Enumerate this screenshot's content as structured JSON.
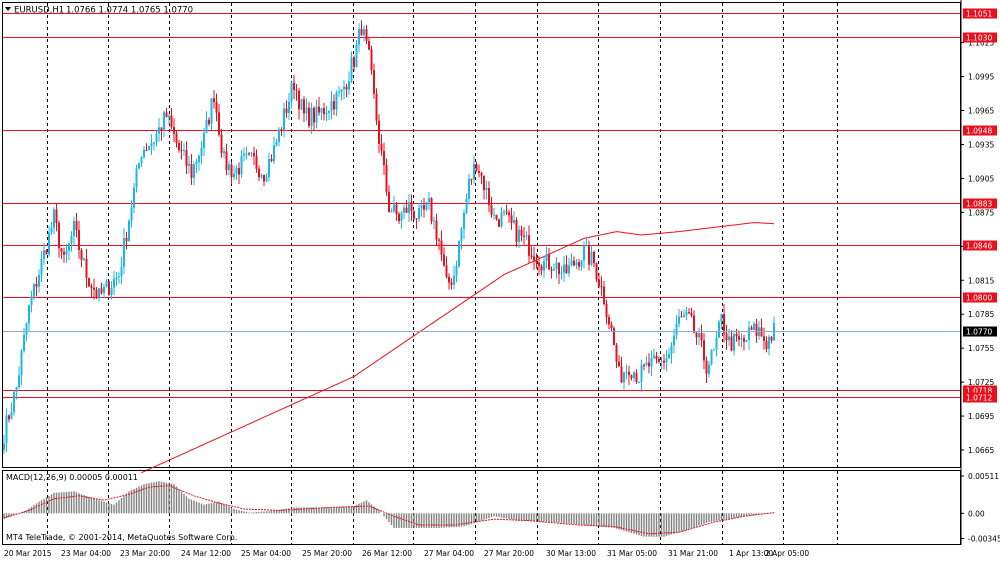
{
  "header": {
    "symbol": "EURUSD,H1",
    "ohlc": "1.0766 1.0774 1.0765 1.0770",
    "dropdown_icon": "triangle-down-icon"
  },
  "colors": {
    "bull": "#1ab8e6",
    "bear": "#e8101d",
    "level": "#e8101d",
    "ma": "#e8101d",
    "grid": "#000000",
    "current_line": "#8fa9c7",
    "histogram": "#808080",
    "signal": "#e8101d"
  },
  "chart_data": [
    {
      "type": "candlestick",
      "title": "EURUSD,H1",
      "ylim": [
        1.065,
        1.106
      ],
      "y_ticks": [
        "1.1025",
        "1.0995",
        "1.0965",
        "1.0935",
        "1.0905",
        "1.0875",
        "1.0845",
        "1.0815",
        "1.0785",
        "1.0755",
        "1.0725",
        "1.0695",
        "1.0665"
      ],
      "x_ticks": [
        "20 Mar 2015",
        "23 Mar 04:00",
        "23 Mar 20:00",
        "24 Mar 12:00",
        "25 Mar 04:00",
        "25 Mar 20:00",
        "26 Mar 12:00",
        "27 Mar 04:00",
        "27 Mar 20:00",
        "30 Mar 13:00",
        "31 Mar 05:00",
        "31 Mar 21:00",
        "1 Apr 13:00",
        "2 Apr 05:00"
      ],
      "levels": [
        {
          "value": 1.1051,
          "label": "1.1051"
        },
        {
          "value": 1.103,
          "label": "1.1030"
        },
        {
          "value": 1.0948,
          "label": "1.0948"
        },
        {
          "value": 1.0883,
          "label": "1.0883"
        },
        {
          "value": 1.0846,
          "label": "1.0846"
        },
        {
          "value": 1.08,
          "label": "1.0800"
        },
        {
          "value": 1.0718,
          "label": "1.0718"
        },
        {
          "value": 1.0712,
          "label": "1.0712"
        }
      ],
      "current_price": {
        "value": 1.077,
        "label": "1.0770"
      },
      "close_path": [
        [
          0,
          1.068
        ],
        [
          5,
          1.072
        ],
        [
          10,
          1.079
        ],
        [
          15,
          1.083
        ],
        [
          20,
          1.087
        ],
        [
          24,
          1.083
        ],
        [
          28,
          1.086
        ],
        [
          33,
          1.082
        ],
        [
          38,
          1.08
        ],
        [
          42,
          1.081
        ],
        [
          46,
          1.082
        ],
        [
          50,
          1.087
        ],
        [
          55,
          1.093
        ],
        [
          60,
          1.094
        ],
        [
          65,
          1.096
        ],
        [
          70,
          1.093
        ],
        [
          75,
          1.091
        ],
        [
          80,
          1.094
        ],
        [
          84,
          1.098
        ],
        [
          88,
          1.092
        ],
        [
          92,
          1.091
        ],
        [
          96,
          1.092
        ],
        [
          100,
          1.092
        ],
        [
          104,
          1.091
        ],
        [
          108,
          1.093
        ],
        [
          112,
          1.096
        ],
        [
          116,
          1.099
        ],
        [
          120,
          1.096
        ],
        [
          125,
          1.096
        ],
        [
          130,
          1.097
        ],
        [
          135,
          1.098
        ],
        [
          140,
          1.101
        ],
        [
          143,
          1.104
        ],
        [
          146,
          1.101
        ],
        [
          150,
          1.094
        ],
        [
          154,
          1.088
        ],
        [
          158,
          1.087
        ],
        [
          162,
          1.088
        ],
        [
          166,
          1.087
        ],
        [
          170,
          1.088
        ],
        [
          174,
          1.085
        ],
        [
          177,
          1.081
        ],
        [
          180,
          1.082
        ],
        [
          183,
          1.086
        ],
        [
          186,
          1.09
        ],
        [
          189,
          1.092
        ],
        [
          192,
          1.09
        ],
        [
          196,
          1.087
        ],
        [
          200,
          1.087
        ],
        [
          204,
          1.086
        ],
        [
          208,
          1.085
        ],
        [
          212,
          1.084
        ],
        [
          216,
          1.083
        ],
        [
          220,
          1.083
        ],
        [
          224,
          1.082
        ],
        [
          228,
          1.083
        ],
        [
          232,
          1.084
        ],
        [
          236,
          1.083
        ],
        [
          240,
          1.08
        ],
        [
          243,
          1.077
        ],
        [
          246,
          1.073
        ],
        [
          250,
          1.074
        ],
        [
          254,
          1.073
        ],
        [
          258,
          1.074
        ],
        [
          262,
          1.074
        ],
        [
          266,
          1.075
        ],
        [
          270,
          1.078
        ],
        [
          274,
          1.078
        ],
        [
          278,
          1.076
        ],
        [
          281,
          1.074
        ],
        [
          284,
          1.075
        ],
        [
          287,
          1.078
        ],
        [
          290,
          1.076
        ],
        [
          293,
          1.076
        ],
        [
          296,
          1.076
        ],
        [
          299,
          1.077
        ],
        [
          302,
          1.077
        ],
        [
          305,
          1.076
        ],
        [
          308,
          1.077
        ]
      ],
      "moving_average": [
        [
          55,
          1.0645
        ],
        [
          80,
          1.067
        ],
        [
          100,
          1.069
        ],
        [
          120,
          1.071
        ],
        [
          140,
          1.073
        ],
        [
          160,
          1.076
        ],
        [
          180,
          1.079
        ],
        [
          200,
          1.082
        ],
        [
          210,
          1.083
        ],
        [
          220,
          1.084
        ],
        [
          232,
          1.0852
        ],
        [
          245,
          1.0858
        ],
        [
          255,
          1.0855
        ],
        [
          270,
          1.0858
        ],
        [
          285,
          1.0862
        ],
        [
          300,
          1.0866
        ],
        [
          308,
          1.0865
        ]
      ]
    },
    {
      "type": "histogram",
      "title": "MACD(12,26,9) 0.00005 0.00011",
      "ylim": [
        -0.0042,
        0.0058
      ],
      "y_ticks": [
        "0.00511",
        "0.00",
        "-0.00345"
      ],
      "histogram_path": [
        [
          0,
          -0.0008
        ],
        [
          8,
          0.0002
        ],
        [
          14,
          0.0016
        ],
        [
          20,
          0.0028
        ],
        [
          28,
          0.003
        ],
        [
          36,
          0.002
        ],
        [
          44,
          0.0012
        ],
        [
          50,
          0.003
        ],
        [
          56,
          0.004
        ],
        [
          62,
          0.0044
        ],
        [
          68,
          0.004
        ],
        [
          74,
          0.002
        ],
        [
          80,
          0.0012
        ],
        [
          86,
          0.0016
        ],
        [
          92,
          0.0006
        ],
        [
          98,
          0.0001
        ],
        [
          106,
          0.0003
        ],
        [
          116,
          0.0008
        ],
        [
          130,
          0.0008
        ],
        [
          140,
          0.001
        ],
        [
          145,
          0.0018
        ],
        [
          150,
          0.0004
        ],
        [
          156,
          -0.002
        ],
        [
          164,
          -0.002
        ],
        [
          174,
          -0.002
        ],
        [
          184,
          -0.0018
        ],
        [
          196,
          -0.0004
        ],
        [
          206,
          -0.001
        ],
        [
          220,
          -0.0012
        ],
        [
          232,
          -0.0016
        ],
        [
          244,
          -0.002
        ],
        [
          256,
          -0.0032
        ],
        [
          264,
          -0.0032
        ],
        [
          272,
          -0.0024
        ],
        [
          282,
          -0.0012
        ],
        [
          296,
          -0.0004
        ],
        [
          308,
          0.0001
        ]
      ],
      "signal_path": [
        [
          0,
          -0.0006
        ],
        [
          10,
          0.0004
        ],
        [
          20,
          0.002
        ],
        [
          30,
          0.0024
        ],
        [
          40,
          0.0018
        ],
        [
          50,
          0.0026
        ],
        [
          58,
          0.0036
        ],
        [
          66,
          0.0038
        ],
        [
          76,
          0.0024
        ],
        [
          86,
          0.0014
        ],
        [
          96,
          0.0006
        ],
        [
          110,
          0.0004
        ],
        [
          130,
          0.0008
        ],
        [
          146,
          0.001
        ],
        [
          156,
          -0.0004
        ],
        [
          166,
          -0.0016
        ],
        [
          180,
          -0.0016
        ],
        [
          196,
          -0.0008
        ],
        [
          210,
          -0.001
        ],
        [
          230,
          -0.0016
        ],
        [
          244,
          -0.0018
        ],
        [
          258,
          -0.0028
        ],
        [
          270,
          -0.0026
        ],
        [
          284,
          -0.0012
        ],
        [
          296,
          -0.0004
        ],
        [
          308,
          0.0001
        ]
      ]
    }
  ],
  "footer": {
    "copyright": "MT4 TeleTrade, © 2001-2014, MetaQuotes Software Corp."
  }
}
